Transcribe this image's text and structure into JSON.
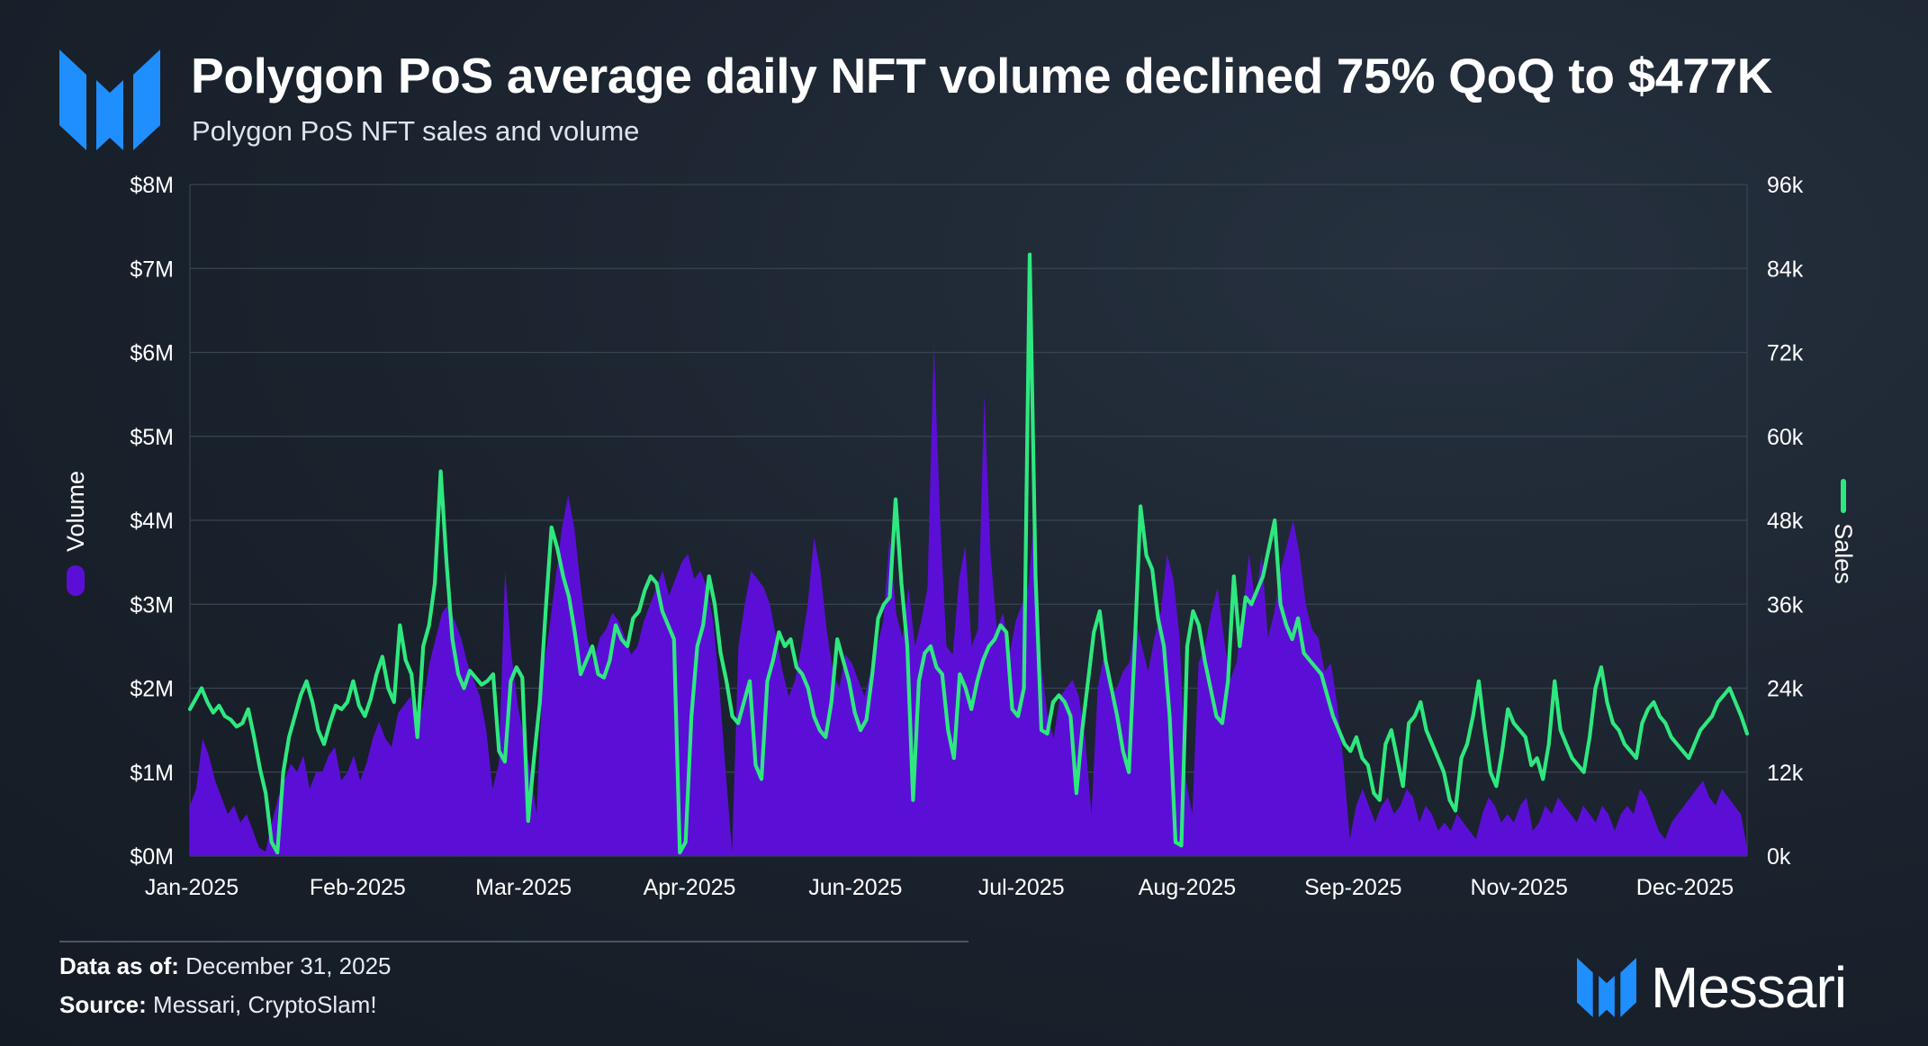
{
  "header": {
    "title": "Polygon PoS average daily NFT volume declined 75% QoQ to $477K",
    "subtitle": "Polygon PoS NFT sales and volume"
  },
  "footer": {
    "data_as_of_label": "Data as of:",
    "data_as_of_value": "December 31, 2025",
    "source_label": "Source:",
    "source_value": "Messari, CryptoSlam!"
  },
  "brand": {
    "name": "Messari",
    "logo_icon": "messari-logo-icon"
  },
  "colors": {
    "volume": "#5b0fd6",
    "sales": "#2ee87f",
    "grid": "#3a4450",
    "accent": "#1f8fff"
  },
  "chart_data": {
    "type": "area",
    "title": "",
    "x_tick_labels": [
      "Jan-2025",
      "Feb-2025",
      "Mar-2025",
      "Apr-2025",
      "Jun-2025",
      "Jul-2025",
      "Aug-2025",
      "Sep-2025",
      "Nov-2025",
      "Dec-2025"
    ],
    "left_axis": {
      "label": "Volume",
      "ticks": [
        "$0M",
        "$1M",
        "$2M",
        "$3M",
        "$4M",
        "$5M",
        "$6M",
        "$7M",
        "$8M"
      ],
      "ylim": [
        0,
        8000000
      ]
    },
    "right_axis": {
      "label": "Sales",
      "ticks": [
        "0k",
        "12k",
        "24k",
        "36k",
        "48k",
        "60k",
        "72k",
        "84k",
        "96k"
      ],
      "ylim": [
        0,
        96000
      ]
    },
    "series": [
      {
        "name": "Volume",
        "type": "area",
        "axis": "left",
        "unit": "USD M",
        "values": [
          0.6,
          0.8,
          1.4,
          1.2,
          0.9,
          0.7,
          0.5,
          0.6,
          0.4,
          0.5,
          0.3,
          0.1,
          0.05,
          0.4,
          0.7,
          0.9,
          1.1,
          1.0,
          1.2,
          0.8,
          1.0,
          1.0,
          1.2,
          1.3,
          0.9,
          1.0,
          1.2,
          0.9,
          1.1,
          1.4,
          1.6,
          1.4,
          1.3,
          1.7,
          1.8,
          1.9,
          1.5,
          1.8,
          2.3,
          2.6,
          2.9,
          3.0,
          2.8,
          2.6,
          2.3,
          2.1,
          1.9,
          1.5,
          0.8,
          1.1,
          3.4,
          2.4,
          1.8,
          1.4,
          1.0,
          0.5,
          2.2,
          2.7,
          3.3,
          3.9,
          4.3,
          3.9,
          3.2,
          2.6,
          2.3,
          2.6,
          2.7,
          2.9,
          2.8,
          2.6,
          2.4,
          2.5,
          2.8,
          3.0,
          3.2,
          3.4,
          3.1,
          3.3,
          3.5,
          3.6,
          3.3,
          3.4,
          3.2,
          2.8,
          2.0,
          1.0,
          0.05,
          2.5,
          3.0,
          3.4,
          3.3,
          3.2,
          3.0,
          2.6,
          2.2,
          1.9,
          2.1,
          2.5,
          3.0,
          3.8,
          3.4,
          2.7,
          2.2,
          2.0,
          2.4,
          2.3,
          2.1,
          1.9,
          2.2,
          2.5,
          2.8,
          3.8,
          2.9,
          2.6,
          3.2,
          2.5,
          2.8,
          3.2,
          6.1,
          4.0,
          2.5,
          2.4,
          3.3,
          3.7,
          2.5,
          2.7,
          5.5,
          3.6,
          2.7,
          2.9,
          2.4,
          2.8,
          3.0,
          3.2,
          4.1,
          2.3,
          1.7,
          1.4,
          1.9,
          2.0,
          2.1,
          1.9,
          1.4,
          0.5,
          2.0,
          2.4,
          1.9,
          2.0,
          2.2,
          2.3,
          2.8,
          2.5,
          2.2,
          2.6,
          2.9,
          3.6,
          3.3,
          2.6,
          0.9,
          0.5,
          2.3,
          2.5,
          2.9,
          3.2,
          2.6,
          2.1,
          2.3,
          2.9,
          3.6,
          3.0,
          3.6,
          2.6,
          2.9,
          3.4,
          3.7,
          4.0,
          3.6,
          3.0,
          2.7,
          2.6,
          2.2,
          2.3,
          1.8,
          1.1,
          0.2,
          0.6,
          0.8,
          0.6,
          0.4,
          0.6,
          0.7,
          0.5,
          0.6,
          0.8,
          0.7,
          0.4,
          0.6,
          0.5,
          0.3,
          0.4,
          0.3,
          0.5,
          0.4,
          0.3,
          0.2,
          0.5,
          0.7,
          0.6,
          0.4,
          0.5,
          0.4,
          0.6,
          0.7,
          0.3,
          0.4,
          0.6,
          0.5,
          0.7,
          0.6,
          0.5,
          0.4,
          0.6,
          0.5,
          0.4,
          0.6,
          0.5,
          0.3,
          0.5,
          0.6,
          0.5,
          0.8,
          0.7,
          0.5,
          0.3,
          0.2,
          0.4,
          0.5,
          0.6,
          0.7,
          0.8,
          0.9,
          0.7,
          0.6,
          0.8,
          0.7,
          0.6,
          0.5,
          0.1
        ]
      },
      {
        "name": "Sales",
        "type": "line",
        "axis": "right",
        "unit": "k",
        "values": [
          21.0,
          22.5,
          24.0,
          22.0,
          20.5,
          21.5,
          20.0,
          19.5,
          18.5,
          19.0,
          21.0,
          17.0,
          12.5,
          9.0,
          2.0,
          0.5,
          12.0,
          17.0,
          20.0,
          23.0,
          25.0,
          22.0,
          18.0,
          16.0,
          19.0,
          21.5,
          21.0,
          22.0,
          25.0,
          21.5,
          20.0,
          22.5,
          26.0,
          28.5,
          24.0,
          22.0,
          33.0,
          28.0,
          26.0,
          17.0,
          30.0,
          33.0,
          39.0,
          55.0,
          42.0,
          31.0,
          26.0,
          24.0,
          26.5,
          25.5,
          24.5,
          25.0,
          26.0,
          15.0,
          13.5,
          25.0,
          27.0,
          25.5,
          5.0,
          14.0,
          22.0,
          35.0,
          47.0,
          44.0,
          40.0,
          37.0,
          32.0,
          26.0,
          28.0,
          30.0,
          26.0,
          25.5,
          28.0,
          33.0,
          31.0,
          30.0,
          34.0,
          35.0,
          38.0,
          40.0,
          39.0,
          35.0,
          33.0,
          31.0,
          0.5,
          2.0,
          20.0,
          30.0,
          33.0,
          40.0,
          36.0,
          29.0,
          25.0,
          20.0,
          19.0,
          22.0,
          25.0,
          13.0,
          11.0,
          25.0,
          28.0,
          32.0,
          30.0,
          31.0,
          27.0,
          26.0,
          24.0,
          20.0,
          18.0,
          17.0,
          22.0,
          31.0,
          28.0,
          25.0,
          20.5,
          18.0,
          19.5,
          26.0,
          34.0,
          36.0,
          37.0,
          51.0,
          39.0,
          30.0,
          8.0,
          25.0,
          29.0,
          30.0,
          27.0,
          26.0,
          18.0,
          14.0,
          26.0,
          24.0,
          21.0,
          25.0,
          28.0,
          30.0,
          31.0,
          33.0,
          32.0,
          21.0,
          20.0,
          24.0,
          86.0,
          40.0,
          18.0,
          17.5,
          22.0,
          23.0,
          22.0,
          20.0,
          9.0,
          18.0,
          25.0,
          32.0,
          35.0,
          28.0,
          24.0,
          20.0,
          15.0,
          12.0,
          30.0,
          50.0,
          43.0,
          41.0,
          34.0,
          30.0,
          20.0,
          2.0,
          1.5,
          30.0,
          35.0,
          33.0,
          28.0,
          24.0,
          20.0,
          19.0,
          25.0,
          40.0,
          30.0,
          37.0,
          36.0,
          38.0,
          40.0,
          44.0,
          48.0,
          36.0,
          33.0,
          31.0,
          34.0,
          29.0,
          28.0,
          27.0,
          26.0,
          23.0,
          20.0,
          18.0,
          16.0,
          15.0,
          17.0,
          14.0,
          13.0,
          9.0,
          8.0,
          16.0,
          18.0,
          14.0,
          10.0,
          19.0,
          20.0,
          22.0,
          18.0,
          16.0,
          14.0,
          12.0,
          8.0,
          6.5,
          14.0,
          16.0,
          20.0,
          25.0,
          18.0,
          12.0,
          10.0,
          15.0,
          21.0,
          19.0,
          18.0,
          17.0,
          13.0,
          14.0,
          11.0,
          16.0,
          25.0,
          18.0,
          16.0,
          14.0,
          13.0,
          12.0,
          17.0,
          24.0,
          27.0,
          22.0,
          19.0,
          18.0,
          16.0,
          15.0,
          14.0,
          19.0,
          21.0,
          22.0,
          20.0,
          19.0,
          17.0,
          16.0,
          15.0,
          14.0,
          16.0,
          18.0,
          19.0,
          20.0,
          22.0,
          23.0,
          24.0,
          22.0,
          20.0,
          17.5
        ]
      }
    ],
    "grid": true,
    "legend": "left-and-right vertical axis labels"
  }
}
